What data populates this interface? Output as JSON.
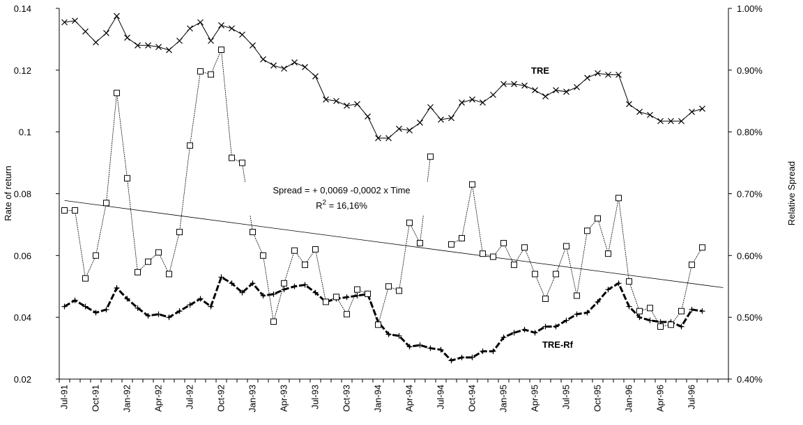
{
  "chart_data": {
    "type": "line",
    "ylabel": "Rate of return",
    "y2label": "Relative Spread",
    "categories": [
      "Jul-91",
      null,
      null,
      "Oct-91",
      null,
      null,
      "Jan-92",
      null,
      null,
      "Apr-92",
      null,
      null,
      "Jul-92",
      null,
      null,
      "Oct-92",
      null,
      null,
      "Jan-93",
      null,
      null,
      "Apr-93",
      null,
      null,
      "Jul-93",
      null,
      null,
      "Oct-93",
      null,
      null,
      "Jan-94",
      null,
      null,
      "Apr-94",
      null,
      null,
      "Jul-94",
      null,
      null,
      "Oct-94",
      null,
      null,
      "Jan-95",
      null,
      null,
      "Apr-95",
      null,
      null,
      "Jul-95",
      null,
      null,
      "Oct-95",
      null,
      null,
      "Jan-96",
      null,
      null,
      "Apr-96",
      null,
      null,
      "Jul-96",
      null,
      null,
      null
    ],
    "ylim": [
      0.02,
      0.14
    ],
    "yticks": [
      0.02,
      0.04,
      0.06,
      0.08,
      0.1,
      0.12,
      0.14
    ],
    "y2lim": [
      0.4,
      1.0
    ],
    "y2ticks": [
      {
        "value": 0.4,
        "label": "0.40%"
      },
      {
        "value": 0.5,
        "label": "0.50%"
      },
      {
        "value": 0.6,
        "label": "0.60%"
      },
      {
        "value": 0.7,
        "label": "0.70%"
      },
      {
        "value": 0.8,
        "label": "0.80%"
      },
      {
        "value": 0.9,
        "label": "0.90%"
      },
      {
        "value": 1.0,
        "label": "1.00%"
      }
    ],
    "series": [
      {
        "name": "TRE",
        "color": "#000000",
        "marker": "x",
        "values": [
          0.1355,
          0.136,
          0.1325,
          0.129,
          0.132,
          0.1375,
          0.1305,
          0.128,
          0.128,
          0.1275,
          0.1265,
          0.1295,
          0.1335,
          0.1355,
          0.1295,
          0.1345,
          0.1335,
          0.1315,
          0.128,
          0.1235,
          0.1215,
          0.1205,
          0.1225,
          0.121,
          0.118,
          0.1105,
          0.11,
          0.1085,
          0.109,
          0.105,
          0.098,
          0.098,
          0.101,
          0.1005,
          0.103,
          0.108,
          0.104,
          0.1045,
          0.1095,
          0.1105,
          0.1095,
          0.112,
          0.1155,
          0.1155,
          0.115,
          0.1135,
          0.1115,
          0.1135,
          0.113,
          0.1145,
          0.1175,
          0.119,
          0.1185,
          0.1185,
          0.109,
          0.1065,
          0.1055,
          0.1035,
          0.1035,
          0.1035,
          0.1065,
          0.1075,
          null,
          null
        ]
      },
      {
        "name": "TRE-Rf",
        "color": "#000000",
        "marker": "plus",
        "values": [
          0.0435,
          0.0455,
          0.0435,
          0.0415,
          0.0425,
          0.0495,
          0.046,
          0.043,
          0.0405,
          0.041,
          0.04,
          0.042,
          0.044,
          0.046,
          0.0435,
          0.053,
          0.051,
          0.048,
          0.051,
          0.047,
          0.0475,
          0.049,
          0.05,
          0.0505,
          0.048,
          0.045,
          0.046,
          0.0465,
          0.047,
          0.0475,
          0.0385,
          0.0345,
          0.034,
          0.0305,
          0.031,
          0.03,
          0.0295,
          0.026,
          0.027,
          0.027,
          0.029,
          0.029,
          0.0335,
          0.035,
          0.036,
          0.035,
          0.037,
          0.037,
          0.039,
          0.041,
          0.0415,
          0.045,
          0.049,
          0.051,
          0.0435,
          0.04,
          0.039,
          0.0385,
          0.0385,
          0.037,
          0.0425,
          0.042,
          null,
          null
        ]
      },
      {
        "color": "#000000",
        "marker": "square",
        "axis": "y2",
        "values": [
          0.673,
          0.673,
          0.563,
          0.6,
          0.685,
          0.863,
          0.725,
          0.573,
          0.59,
          0.605,
          0.57,
          0.638,
          0.778,
          0.898,
          0.893,
          0.933,
          0.758,
          0.75,
          0.638,
          0.6,
          0.493,
          0.555,
          0.608,
          0.585,
          0.61,
          0.525,
          0.533,
          0.505,
          0.545,
          0.538,
          0.488,
          0.55,
          0.543,
          0.653,
          0.62,
          0.76,
          null,
          0.618,
          0.628,
          0.715,
          0.603,
          0.598,
          0.62,
          0.585,
          0.613,
          0.57,
          0.53,
          0.57,
          0.615,
          0.535,
          0.64,
          0.66,
          0.603,
          0.693,
          0.558,
          0.51,
          0.515,
          0.485,
          0.488,
          0.51,
          0.585,
          0.613,
          null,
          null
        ]
      }
    ],
    "trendline": {
      "axis": "y2",
      "color": "#000000",
      "values": [
        0.689,
        0.548
      ]
    },
    "annotations": {
      "equation": "Spread = + 0,0069 -0,0002 x Time",
      "r2": [
        "R",
        "2",
        " = 16,16%"
      ]
    }
  }
}
